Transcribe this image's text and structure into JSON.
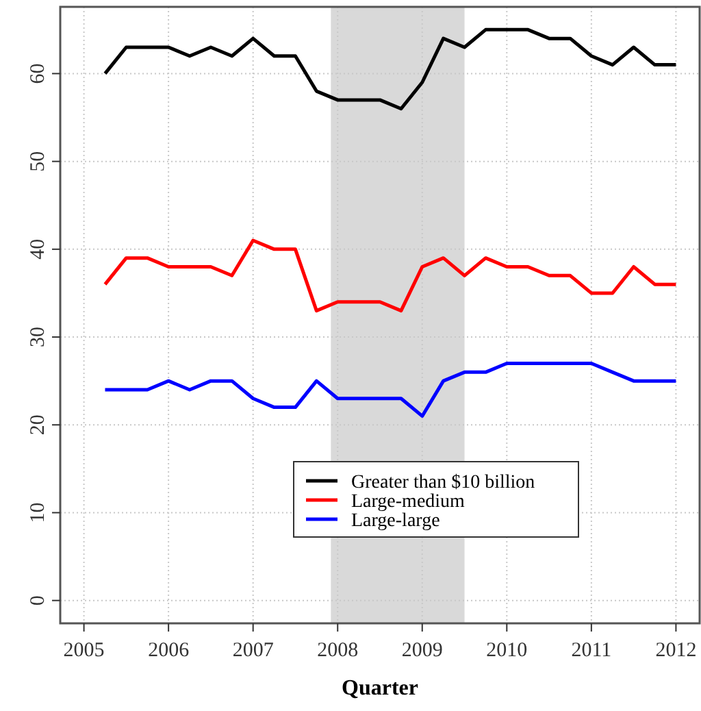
{
  "chart_data": {
    "type": "line",
    "xlabel": "Quarter",
    "x": [
      2005.25,
      2005.5,
      2005.75,
      2006,
      2006.25,
      2006.5,
      2006.75,
      2007,
      2007.25,
      2007.5,
      2007.75,
      2008,
      2008.25,
      2008.5,
      2008.75,
      2009,
      2009.25,
      2009.5,
      2009.75,
      2010,
      2010.25,
      2010.5,
      2010.75,
      2011,
      2011.25,
      2011.5,
      2011.75,
      2012
    ],
    "series": [
      {
        "name": "Greater than $10 billion",
        "color": "#000000",
        "values": [
          60,
          63,
          63,
          63,
          62,
          63,
          62,
          64,
          62,
          62,
          58,
          57,
          57,
          57,
          56,
          59,
          64,
          63,
          65,
          65,
          65,
          64,
          64,
          62,
          61,
          63,
          61,
          61
        ]
      },
      {
        "name": "Large-medium",
        "color": "#ff0000",
        "values": [
          36,
          39,
          39,
          38,
          38,
          38,
          37,
          41,
          40,
          40,
          33,
          34,
          34,
          34,
          33,
          38,
          39,
          37,
          39,
          38,
          38,
          37,
          37,
          35,
          35,
          38,
          36,
          36
        ]
      },
      {
        "name": "Large-large",
        "color": "#0000ff",
        "values": [
          24,
          24,
          24,
          25,
          24,
          25,
          25,
          23,
          22,
          22,
          25,
          23,
          23,
          23,
          23,
          21,
          25,
          26,
          26,
          27,
          27,
          27,
          27,
          27,
          26,
          25,
          25,
          25
        ]
      }
    ],
    "xlim": [
      2004.72,
      2012.28
    ],
    "xticks": [
      2005,
      2006,
      2007,
      2008,
      2009,
      2010,
      2011,
      2012
    ],
    "ylim": [
      -2.6,
      67.6
    ],
    "yticks": [
      0,
      10,
      20,
      30,
      40,
      50,
      60
    ],
    "bands": [
      {
        "axis": "x",
        "from": 2007.92,
        "to": 2009.5,
        "color": "#d9d9d9"
      }
    ],
    "grid": true,
    "legend": "bottom",
    "line_style": "solid",
    "marker": "none"
  }
}
